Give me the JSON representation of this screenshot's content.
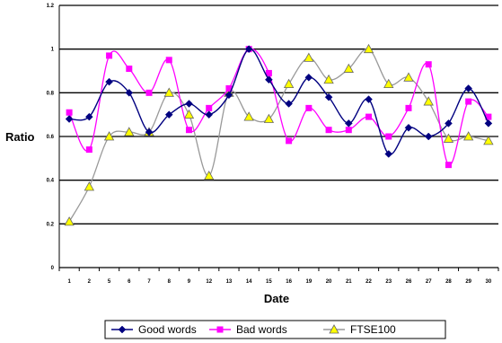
{
  "chart_data": {
    "type": "line",
    "title": "",
    "xlabel": "Date",
    "ylabel": "Ratio",
    "ylim": [
      0,
      1.2
    ],
    "ytick_labels": [
      "0",
      "0.2",
      "0.4",
      "0.6",
      "0.8",
      "1",
      "1.2"
    ],
    "ytick_values": [
      0,
      0.2,
      0.4,
      0.6,
      0.8,
      1.0,
      1.2
    ],
    "categories": [
      "1",
      "2",
      "5",
      "6",
      "7",
      "8",
      "9",
      "12",
      "13",
      "14",
      "15",
      "16",
      "19",
      "20",
      "21",
      "22",
      "23",
      "26",
      "27",
      "28",
      "29",
      "30"
    ],
    "grid": "horizontal",
    "legend_position": "bottom",
    "series": [
      {
        "name": "Good words",
        "color": "#000080",
        "marker": "diamond",
        "values": [
          0.68,
          0.69,
          0.85,
          0.8,
          0.62,
          0.7,
          0.75,
          0.7,
          0.79,
          1.0,
          0.86,
          0.75,
          0.87,
          0.78,
          0.66,
          0.77,
          0.52,
          0.64,
          0.6,
          0.66,
          0.82,
          0.66
        ]
      },
      {
        "name": "Bad words",
        "color": "#ff00ff",
        "marker": "square",
        "values": [
          0.71,
          0.54,
          0.97,
          0.91,
          0.8,
          0.95,
          0.63,
          0.73,
          0.82,
          1.0,
          0.89,
          0.58,
          0.73,
          0.63,
          0.63,
          0.69,
          0.6,
          0.73,
          0.93,
          0.47,
          0.76,
          0.69
        ]
      },
      {
        "name": "FTSE100",
        "color": "#999999",
        "marker": "triangle",
        "marker_fill": "#ffff00",
        "values": [
          0.21,
          0.37,
          0.6,
          0.62,
          0.62,
          0.8,
          0.7,
          0.42,
          0.8,
          0.69,
          0.68,
          0.84,
          0.96,
          0.86,
          0.91,
          1.0,
          0.84,
          0.87,
          0.76,
          0.59,
          0.6,
          0.58
        ]
      }
    ]
  },
  "legend": {
    "items": [
      "Good words",
      "Bad words",
      "FTSE100"
    ]
  }
}
